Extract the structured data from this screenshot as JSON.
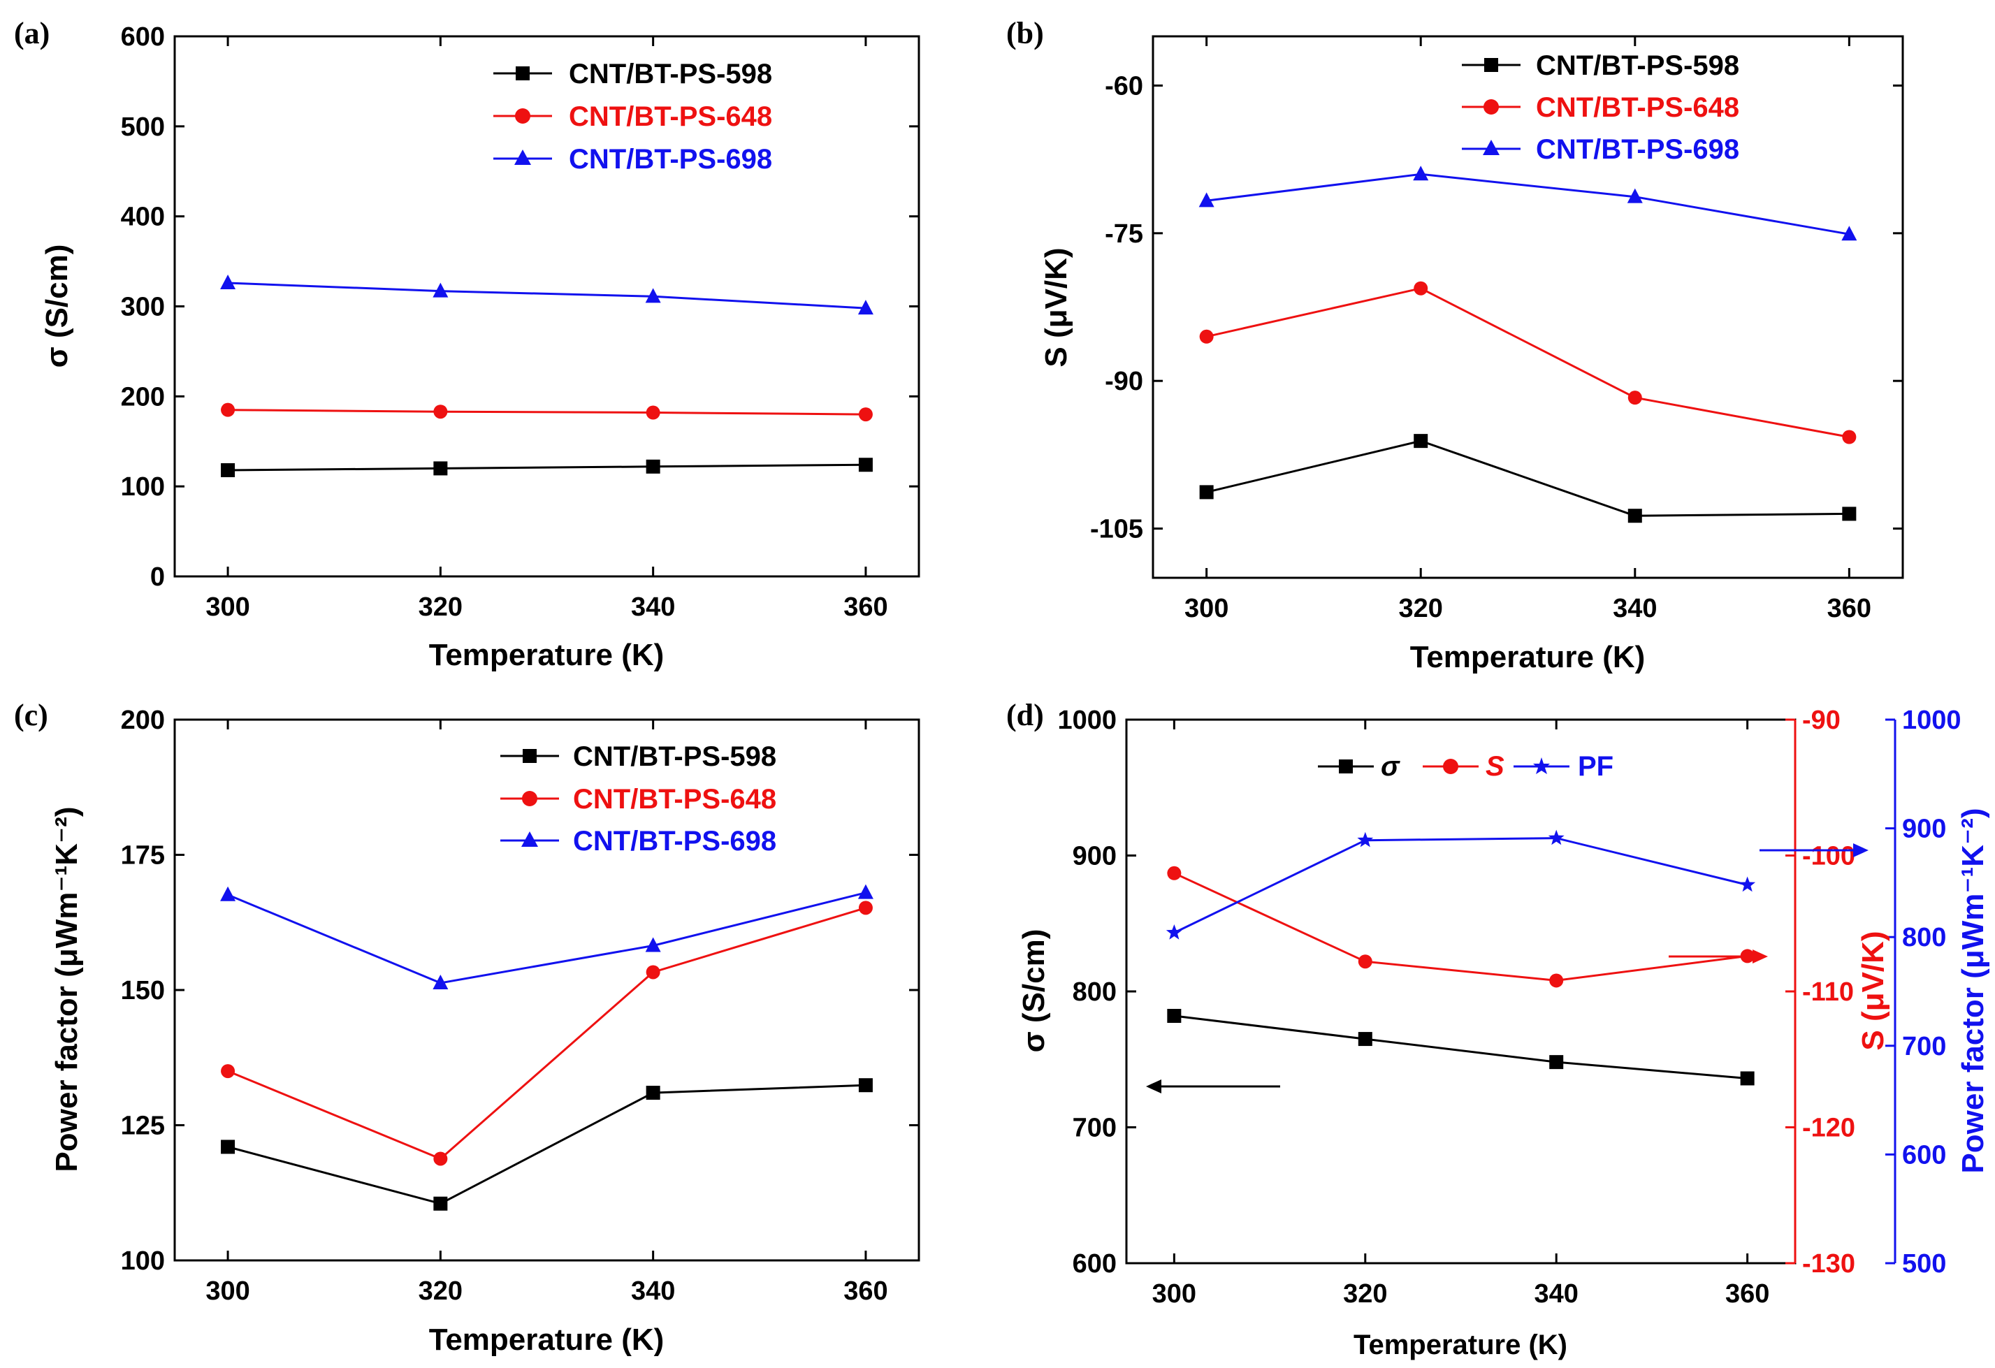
{
  "chart_data": [
    {
      "id": "a",
      "type": "line",
      "panel_label": "(a)",
      "xlabel": "Temperature (K)",
      "ylabel": "σ (S/cm)",
      "x": [
        300,
        320,
        340,
        360
      ],
      "xlim": [
        295,
        365
      ],
      "ylim": [
        0,
        600
      ],
      "xticks": [
        300,
        320,
        340,
        360
      ],
      "yticks": [
        0,
        100,
        200,
        300,
        400,
        500,
        600
      ],
      "legend_position": "top-right",
      "series": [
        {
          "name": "CNT/BT-PS-598",
          "color": "#000000",
          "marker": "square",
          "values": [
            118,
            120,
            122,
            124
          ]
        },
        {
          "name": "CNT/BT-PS-648",
          "color": "#ee1111",
          "marker": "circle",
          "values": [
            185,
            183,
            182,
            180
          ]
        },
        {
          "name": "CNT/BT-PS-698",
          "color": "#1111ee",
          "marker": "triangle",
          "values": [
            326,
            317,
            311,
            298
          ]
        }
      ]
    },
    {
      "id": "b",
      "type": "line",
      "panel_label": "(b)",
      "xlabel": "Temperature (K)",
      "ylabel": "S (μV/K)",
      "x": [
        300,
        320,
        340,
        360
      ],
      "xlim": [
        295,
        365
      ],
      "ylim": [
        -110,
        -55
      ],
      "xticks": [
        300,
        320,
        340,
        360
      ],
      "yticks": [
        -105,
        -90,
        -75,
        -60
      ],
      "legend_position": "top-right",
      "series": [
        {
          "name": "CNT/BT-PS-598",
          "color": "#000000",
          "marker": "square",
          "values": [
            -101.3,
            -96.1,
            -103.7,
            -103.5
          ]
        },
        {
          "name": "CNT/BT-PS-648",
          "color": "#ee1111",
          "marker": "circle",
          "values": [
            -85.5,
            -80.6,
            -91.7,
            -95.7
          ]
        },
        {
          "name": "CNT/BT-PS-698",
          "color": "#1111ee",
          "marker": "triangle",
          "values": [
            -71.7,
            -69.0,
            -71.3,
            -75.1
          ]
        }
      ]
    },
    {
      "id": "c",
      "type": "line",
      "panel_label": "(c)",
      "xlabel": "Temperature (K)",
      "ylabel": "Power factor (μWm⁻¹K⁻²)",
      "x": [
        300,
        320,
        340,
        360
      ],
      "xlim": [
        295,
        365
      ],
      "ylim": [
        100,
        200
      ],
      "xticks": [
        300,
        320,
        340,
        360
      ],
      "yticks": [
        100,
        125,
        150,
        175,
        200
      ],
      "legend_position": "top-right",
      "series": [
        {
          "name": "CNT/BT-PS-598",
          "color": "#000000",
          "marker": "square",
          "values": [
            121,
            110.5,
            131,
            132.4
          ]
        },
        {
          "name": "CNT/BT-PS-648",
          "color": "#ee1111",
          "marker": "circle",
          "values": [
            135,
            118.8,
            153.3,
            165.2
          ]
        },
        {
          "name": "CNT/BT-PS-698",
          "color": "#1111ee",
          "marker": "triangle",
          "values": [
            167.6,
            151.3,
            158.2,
            168
          ]
        }
      ]
    },
    {
      "id": "d",
      "type": "line",
      "panel_label": "(d)",
      "xlabel": "Temperature (K)",
      "x": [
        300,
        320,
        340,
        360
      ],
      "xlim": [
        295,
        365
      ],
      "xticks": [
        300,
        320,
        340,
        360
      ],
      "legend_position": "top-center",
      "axes": [
        {
          "id": "left",
          "label": "σ (S/cm)",
          "color": "#000000",
          "ylim": [
            600,
            1000
          ],
          "yticks": [
            600,
            700,
            800,
            900,
            1000
          ]
        },
        {
          "id": "right1",
          "label": "S (μV/K)",
          "color": "#ee1111",
          "ylim": [
            -130,
            -90
          ],
          "yticks": [
            -130,
            -120,
            -110,
            -100,
            -90
          ]
        },
        {
          "id": "right2",
          "label": "Power factor (μWm⁻¹K⁻²)",
          "color": "#1111ee",
          "ylim": [
            500,
            1000
          ],
          "yticks": [
            500,
            600,
            700,
            800,
            900,
            1000
          ]
        }
      ],
      "series": [
        {
          "name": "σ",
          "axis": "left",
          "color": "#000000",
          "marker": "square",
          "values": [
            782,
            765,
            748,
            736
          ]
        },
        {
          "name": "S",
          "axis": "right1",
          "color": "#ee1111",
          "marker": "circle",
          "values": [
            -101.3,
            -107.8,
            -109.2,
            -107.4
          ]
        },
        {
          "name": "PF",
          "axis": "right2",
          "color": "#1111ee",
          "marker": "star",
          "values": [
            804,
            889,
            891,
            848
          ]
        }
      ]
    }
  ]
}
